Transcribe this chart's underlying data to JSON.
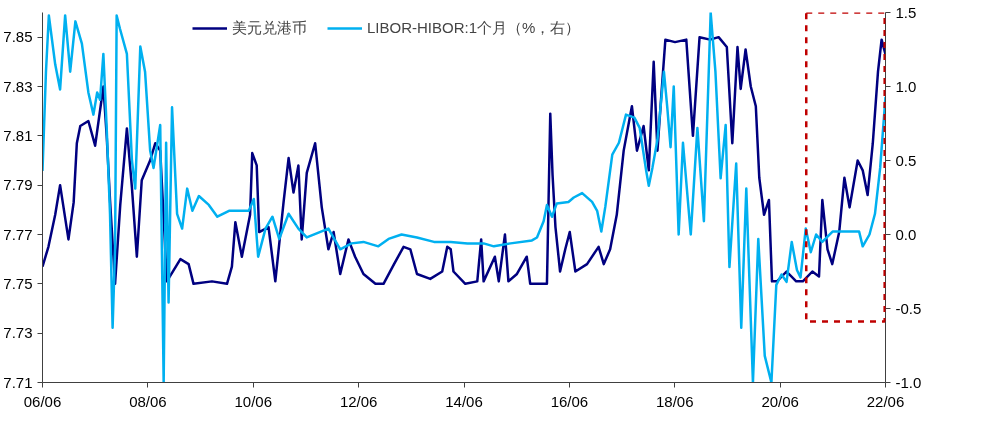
{
  "chart_data": {
    "type": "line",
    "series": [
      {
        "name": "美元兑港币",
        "color": "#000080",
        "x": [
          "2006-06-01",
          "2006-07-12",
          "2006-08-28",
          "2006-10-01",
          "2006-11-28",
          "2007-01-03",
          "2007-01-25",
          "2007-02-18",
          "2007-04-15",
          "2007-06-01",
          "2007-07-28",
          "2007-08-20",
          "2007-09-12",
          "2007-10-17",
          "2007-11-22",
          "2008-01-07",
          "2008-02-11",
          "2008-03-16",
          "2008-04-19",
          "2008-06-16",
          "2008-07-22",
          "2008-08-25",
          "2008-10-10",
          "2009-01-12",
          "2009-03-10",
          "2009-04-13",
          "2009-08-19",
          "2009-12-01",
          "2010-01-04",
          "2010-01-28",
          "2010-03-14",
          "2010-05-10",
          "2010-05-25",
          "2010-06-25",
          "2010-07-12",
          "2010-09-15",
          "2010-11-01",
          "2010-12-28",
          "2011-02-01",
          "2011-03-07",
          "2011-04-10",
          "2011-05-03",
          "2011-06-07",
          "2011-08-04",
          "2011-09-19",
          "2011-11-04",
          "2011-12-10",
          "2012-01-25",
          "2012-03-22",
          "2012-05-07",
          "2012-07-04",
          "2012-09-25",
          "2012-11-20",
          "2013-02-01",
          "2013-04-08",
          "2013-05-25",
          "2013-07-10",
          "2013-10-10",
          "2014-01-01",
          "2014-02-05",
          "2014-03-01",
          "2014-03-20",
          "2014-06-10",
          "2014-09-01",
          "2014-09-28",
          "2014-10-15",
          "2015-01-01",
          "2015-01-28",
          "2015-03-12",
          "2015-04-05",
          "2015-06-03",
          "2015-08-10",
          "2015-09-03",
          "2015-12-28",
          "2016-01-20",
          "2016-02-05",
          "2016-02-25",
          "2016-03-28",
          "2016-05-03",
          "2016-06-03",
          "2016-07-12",
          "2016-10-01",
          "2016-12-20",
          "2017-01-25",
          "2017-03-10",
          "2017-04-25",
          "2017-06-12",
          "2017-08-08",
          "2017-09-12",
          "2017-10-28",
          "2017-12-03",
          "2018-01-06",
          "2018-02-01",
          "2018-03-03",
          "2018-03-28",
          "2018-06-03",
          "2018-08-20",
          "2018-10-05",
          "2018-11-20",
          "2019-02-01",
          "2019-04-01",
          "2019-05-28",
          "2019-07-05",
          "2019-08-10",
          "2019-09-01",
          "2019-10-05",
          "2019-11-10",
          "2019-12-15",
          "2020-01-08",
          "2020-02-10",
          "2020-03-15",
          "2020-04-05",
          "2020-05-10",
          "2020-07-15",
          "2020-09-20",
          "2020-11-05",
          "2021-01-10",
          "2021-02-25",
          "2021-03-20",
          "2021-04-25",
          "2021-05-28",
          "2021-07-15",
          "2021-08-20",
          "2021-09-25",
          "2021-11-20",
          "2021-12-25",
          "2022-01-28",
          "2022-03-05",
          "2022-04-10",
          "2022-05-05",
          "2022-06-01"
        ],
        "values": [
          7.757,
          7.765,
          7.778,
          7.79,
          7.768,
          7.783,
          7.807,
          7.814,
          7.816,
          7.806,
          7.83,
          7.81,
          7.784,
          7.75,
          7.782,
          7.813,
          7.789,
          7.761,
          7.792,
          7.8,
          7.807,
          7.804,
          7.751,
          7.76,
          7.758,
          7.75,
          7.751,
          7.75,
          7.757,
          7.775,
          7.761,
          7.778,
          7.803,
          7.798,
          7.771,
          7.773,
          7.751,
          7.783,
          7.801,
          7.787,
          7.798,
          7.768,
          7.795,
          7.807,
          7.781,
          7.764,
          7.771,
          7.754,
          7.768,
          7.761,
          7.754,
          7.75,
          7.75,
          7.758,
          7.765,
          7.764,
          7.754,
          7.752,
          7.755,
          7.765,
          7.764,
          7.755,
          7.75,
          7.751,
          7.768,
          7.751,
          7.761,
          7.751,
          7.77,
          7.751,
          7.754,
          7.761,
          7.75,
          7.75,
          7.819,
          7.794,
          7.773,
          7.755,
          7.764,
          7.771,
          7.755,
          7.758,
          7.765,
          7.758,
          7.764,
          7.778,
          7.804,
          7.822,
          7.804,
          7.814,
          7.796,
          7.84,
          7.804,
          7.829,
          7.849,
          7.848,
          7.849,
          7.81,
          7.85,
          7.849,
          7.85,
          7.846,
          7.807,
          7.846,
          7.829,
          7.845,
          7.83,
          7.822,
          7.793,
          7.778,
          7.784,
          7.751,
          7.751,
          7.755,
          7.751,
          7.751,
          7.755,
          7.753,
          7.784,
          7.764,
          7.758,
          7.771,
          7.793,
          7.781,
          7.8,
          7.796,
          7.786,
          7.807,
          7.836,
          7.849,
          7.843
        ]
      },
      {
        "name": "LIBOR-HIBOR:1个月（%，右）",
        "color": "#00b0f0",
        "axis": "y2",
        "x": [
          "2006-06-01",
          "2006-06-25",
          "2006-07-15",
          "2006-08-28",
          "2006-10-01",
          "2006-11-05",
          "2006-12-10",
          "2007-01-15",
          "2007-03-01",
          "2007-04-15",
          "2007-05-20",
          "2007-06-15",
          "2007-07-05",
          "2007-07-28",
          "2007-08-20",
          "2007-09-12",
          "2007-09-30",
          "2007-10-17",
          "2007-10-28",
          "2007-11-20",
          "2008-01-07",
          "2008-02-11",
          "2008-03-05",
          "2008-04-09",
          "2008-05-12",
          "2008-06-16",
          "2008-07-10",
          "2008-08-25",
          "2008-09-18",
          "2008-10-05",
          "2008-10-22",
          "2008-11-15",
          "2008-12-20",
          "2009-01-24",
          "2009-02-28",
          "2009-04-05",
          "2009-05-20",
          "2009-07-28",
          "2009-09-25",
          "2009-12-15",
          "2010-05-01",
          "2010-06-05",
          "2010-07-05",
          "2010-08-25",
          "2010-10-12",
          "2010-11-28",
          "2011-02-01",
          "2011-04-10",
          "2011-06-07",
          "2011-11-04",
          "2012-01-25",
          "2012-04-12",
          "2012-07-04",
          "2012-10-15",
          "2012-12-25",
          "2013-03-25",
          "2013-07-10",
          "2013-11-05",
          "2014-03-01",
          "2014-06-25",
          "2014-10-15",
          "2014-12-25",
          "2015-04-20",
          "2015-09-15",
          "2015-10-20",
          "2015-12-05",
          "2015-12-28",
          "2016-02-01",
          "2016-03-05",
          "2016-05-25",
          "2016-07-01",
          "2016-08-28",
          "2016-11-05",
          "2016-12-10",
          "2017-01-08",
          "2017-02-05",
          "2017-03-25",
          "2017-05-10",
          "2017-06-28",
          "2017-08-25",
          "2017-10-01",
          "2017-11-15",
          "2017-12-03",
          "2017-12-28",
          "2018-02-01",
          "2018-03-18",
          "2018-04-10",
          "2018-05-03",
          "2018-05-25",
          "2018-06-28",
          "2018-07-28",
          "2018-09-20",
          "2018-11-05",
          "2018-12-20",
          "2019-02-05",
          "2019-03-10",
          "2019-04-15",
          "2019-05-20",
          "2019-06-15",
          "2019-08-01",
          "2019-09-05",
          "2019-10-10",
          "2019-11-25",
          "2020-01-01",
          "2020-02-15",
          "2020-04-01",
          "2020-05-05",
          "2020-06-10",
          "2020-07-15",
          "2020-08-20",
          "2020-09-25",
          "2020-10-20",
          "2020-11-25",
          "2020-12-30",
          "2021-02-05",
          "2021-03-20",
          "2021-05-30",
          "2021-09-10",
          "2021-11-30",
          "2021-12-25",
          "2022-02-10",
          "2022-03-20",
          "2022-04-25",
          "2022-06-01"
        ],
        "values": [
          0.43,
          1.1,
          1.48,
          1.15,
          0.98,
          1.48,
          1.1,
          1.44,
          1.29,
          0.96,
          0.81,
          0.96,
          0.91,
          1.22,
          0.72,
          0.14,
          -0.63,
          -0.1,
          1.48,
          1.39,
          1.22,
          0.5,
          0.31,
          1.27,
          1.1,
          0.57,
          0.45,
          0.74,
          -1.0,
          0.62,
          -0.46,
          0.86,
          0.14,
          0.04,
          0.31,
          0.16,
          0.26,
          0.2,
          0.12,
          0.16,
          0.16,
          0.24,
          -0.15,
          0.04,
          0.12,
          -0.03,
          0.14,
          0.04,
          -0.02,
          0.04,
          -0.1,
          -0.06,
          -0.05,
          -0.08,
          -0.03,
          0.0,
          -0.02,
          -0.05,
          -0.05,
          -0.06,
          -0.06,
          -0.08,
          -0.06,
          -0.04,
          -0.02,
          0.09,
          0.2,
          0.12,
          0.21,
          0.22,
          0.25,
          0.28,
          0.22,
          0.16,
          0.02,
          0.19,
          0.54,
          0.62,
          0.81,
          0.79,
          0.72,
          0.43,
          0.33,
          0.45,
          0.64,
          1.1,
          0.86,
          0.59,
          1.0,
          0.0,
          0.62,
          0.0,
          0.72,
          0.09,
          1.5,
          1.1,
          0.38,
          0.74,
          -0.22,
          0.48,
          -0.63,
          0.31,
          -1.0,
          -0.03,
          -0.82,
          -1.0,
          -0.34,
          -0.27,
          -0.32,
          -0.05,
          -0.24,
          -0.29,
          0.04,
          -0.12,
          0.0,
          -0.05,
          0.02,
          0.02,
          0.02,
          -0.08,
          0.0,
          0.14,
          0.45,
          0.93
        ]
      }
    ],
    "xlim": [
      "2006-06",
      "2022-06"
    ],
    "xticks": [
      {
        "value": "2006-06",
        "label": "06/06"
      },
      {
        "value": "2008-06",
        "label": "08/06"
      },
      {
        "value": "2010-06",
        "label": "10/06"
      },
      {
        "value": "2012-06",
        "label": "12/06"
      },
      {
        "value": "2014-06",
        "label": "14/06"
      },
      {
        "value": "2016-06",
        "label": "16/06"
      },
      {
        "value": "2018-06",
        "label": "18/06"
      },
      {
        "value": "2020-06",
        "label": "20/06"
      },
      {
        "value": "2022-06",
        "label": "22/06"
      }
    ],
    "ylim": [
      7.71,
      7.86
    ],
    "yticks": [
      7.71,
      7.73,
      7.75,
      7.77,
      7.79,
      7.81,
      7.83,
      7.85
    ],
    "y2lim": [
      -1.0,
      1.5
    ],
    "y2ticks": [
      {
        "value": -1,
        "label": "-1.0"
      },
      {
        "value": -0.5,
        "label": "-0.5"
      },
      {
        "value": 0,
        "label": "0.0"
      },
      {
        "value": 0.5,
        "label": "0.5"
      },
      {
        "value": 1,
        "label": "1.0"
      },
      {
        "value": 1.5,
        "label": "1.5"
      }
    ],
    "legend": "top",
    "grid": false
  }
}
